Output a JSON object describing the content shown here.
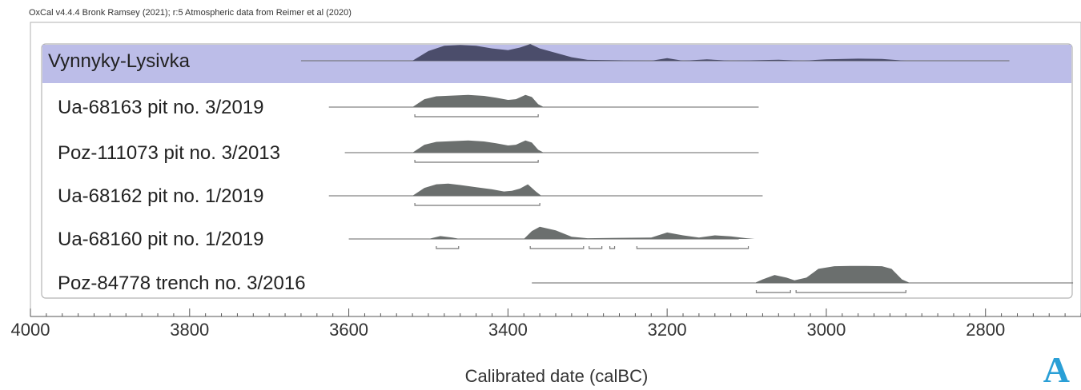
{
  "header_text": "OxCal v4.4.4 Bronk Ramsey (2021); r:5 Atmospheric data from Reimer et al (2020)",
  "panel_label": "A",
  "colors": {
    "phase_band": "#bcbde8",
    "phase_fill": "#4b4d6b",
    "sample_fill": "#6b6f6e",
    "axis": "#555555",
    "text": "#222222",
    "panel_letter": "#2a9fd6"
  },
  "chart_data": {
    "type": "area",
    "xlabel": "Calibrated date (calBC)",
    "xlim": [
      4000,
      2680
    ],
    "x_ticks": [
      4000,
      3800,
      3600,
      3400,
      3200,
      3000,
      2800
    ],
    "x_tick_labels": [
      "4000",
      "3800",
      "3600",
      "3400",
      "3200",
      "3000",
      "2800"
    ],
    "grid": false,
    "series": [
      {
        "name": "Vynnyky-Lysivka",
        "role": "phase",
        "line_range": [
          3660,
          2770
        ],
        "distribution": [
          [
            3520,
            0
          ],
          [
            3500,
            0.55
          ],
          [
            3480,
            0.85
          ],
          [
            3460,
            0.9
          ],
          [
            3440,
            0.85
          ],
          [
            3420,
            0.7
          ],
          [
            3400,
            0.6
          ],
          [
            3385,
            0.75
          ],
          [
            3372,
            0.95
          ],
          [
            3360,
            0.7
          ],
          [
            3340,
            0.45
          ],
          [
            3320,
            0.2
          ],
          [
            3300,
            0.05
          ],
          [
            3220,
            0
          ],
          [
            3200,
            0.15
          ],
          [
            3180,
            0
          ],
          [
            3150,
            0.08
          ],
          [
            3120,
            0
          ],
          [
            3060,
            0.06
          ],
          [
            3030,
            0
          ],
          [
            3000,
            0.08
          ],
          [
            2960,
            0.12
          ],
          [
            2930,
            0.1
          ],
          [
            2900,
            0
          ]
        ],
        "ranges_95": []
      },
      {
        "name": "Ua-68163 pit no. 3/2019",
        "role": "sample",
        "line_range": [
          3625,
          3085
        ],
        "distribution": [
          [
            3520,
            0
          ],
          [
            3505,
            0.55
          ],
          [
            3490,
            0.75
          ],
          [
            3470,
            0.8
          ],
          [
            3450,
            0.85
          ],
          [
            3430,
            0.78
          ],
          [
            3415,
            0.65
          ],
          [
            3400,
            0.5
          ],
          [
            3390,
            0.55
          ],
          [
            3378,
            0.85
          ],
          [
            3370,
            0.7
          ],
          [
            3362,
            0.2
          ],
          [
            3355,
            0
          ]
        ],
        "ranges_95": [
          [
            3517,
            3362
          ]
        ]
      },
      {
        "name": "Poz-111073 pit no. 3/2013",
        "role": "sample",
        "line_range": [
          3605,
          3085
        ],
        "distribution": [
          [
            3520,
            0
          ],
          [
            3505,
            0.55
          ],
          [
            3490,
            0.75
          ],
          [
            3470,
            0.8
          ],
          [
            3450,
            0.85
          ],
          [
            3430,
            0.78
          ],
          [
            3415,
            0.65
          ],
          [
            3400,
            0.5
          ],
          [
            3390,
            0.55
          ],
          [
            3378,
            0.85
          ],
          [
            3370,
            0.7
          ],
          [
            3362,
            0.2
          ],
          [
            3355,
            0
          ]
        ],
        "ranges_95": [
          [
            3517,
            3362
          ]
        ]
      },
      {
        "name": "Ua-68162 pit no. 1/2019",
        "role": "sample",
        "line_range": [
          3625,
          3080
        ],
        "distribution": [
          [
            3520,
            0
          ],
          [
            3505,
            0.55
          ],
          [
            3490,
            0.8
          ],
          [
            3475,
            0.85
          ],
          [
            3460,
            0.75
          ],
          [
            3440,
            0.6
          ],
          [
            3420,
            0.45
          ],
          [
            3405,
            0.3
          ],
          [
            3395,
            0.35
          ],
          [
            3385,
            0.5
          ],
          [
            3375,
            0.8
          ],
          [
            3365,
            0.3
          ],
          [
            3358,
            0
          ]
        ],
        "ranges_95": [
          [
            3517,
            3360
          ]
        ]
      },
      {
        "name": "Ua-68160 pit no. 1/2019",
        "role": "sample",
        "line_range": [
          3600,
          3110
        ],
        "distribution": [
          [
            3500,
            0
          ],
          [
            3485,
            0.2
          ],
          [
            3470,
            0.1
          ],
          [
            3460,
            0
          ],
          [
            3380,
            0
          ],
          [
            3370,
            0.55
          ],
          [
            3360,
            0.85
          ],
          [
            3340,
            0.6
          ],
          [
            3320,
            0.15
          ],
          [
            3300,
            0.05
          ],
          [
            3220,
            0.1
          ],
          [
            3200,
            0.45
          ],
          [
            3180,
            0.25
          ],
          [
            3160,
            0.1
          ],
          [
            3140,
            0.25
          ],
          [
            3120,
            0.18
          ],
          [
            3100,
            0.05
          ],
          [
            3090,
            0
          ]
        ],
        "ranges_95": [
          [
            3490,
            3462
          ],
          [
            3372,
            3305
          ],
          [
            3298,
            3282
          ],
          [
            3272,
            3266
          ],
          [
            3238,
            3098
          ]
        ]
      },
      {
        "name": "Poz-84778 trench no. 3/2016",
        "role": "sample",
        "line_range": [
          3370,
          2690
        ],
        "distribution": [
          [
            3090,
            0
          ],
          [
            3080,
            0.2
          ],
          [
            3065,
            0.45
          ],
          [
            3050,
            0.3
          ],
          [
            3040,
            0.15
          ],
          [
            3025,
            0.3
          ],
          [
            3010,
            0.8
          ],
          [
            2990,
            0.95
          ],
          [
            2970,
            0.97
          ],
          [
            2950,
            0.97
          ],
          [
            2930,
            0.95
          ],
          [
            2918,
            0.8
          ],
          [
            2905,
            0.2
          ],
          [
            2895,
            0
          ]
        ],
        "ranges_95": [
          [
            3088,
            3045
          ],
          [
            3038,
            2900
          ]
        ]
      }
    ]
  }
}
